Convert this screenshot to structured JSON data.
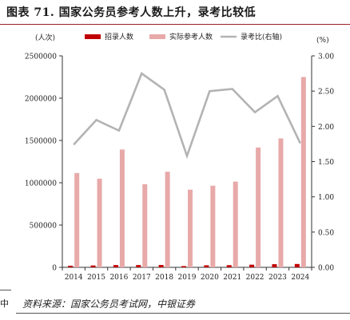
{
  "figure_title": "图表 71. 国家公务员参考人数上升，录考比较低",
  "source_note": "资料来源：国家公务员考试网，中银证券",
  "left_margin_text": "中",
  "colors": {
    "recruit": "#c00000",
    "applicants": "#e8a9a9",
    "ratio_line": "#b3b3b3",
    "title_rule": "#9c1f24"
  },
  "chart_data": {
    "type": "bar",
    "categories": [
      "2014",
      "2015",
      "2016",
      "2017",
      "2018",
      "2019",
      "2020",
      "2021",
      "2022",
      "2023",
      "2024"
    ],
    "series": [
      {
        "name": "招录人数",
        "kind": "bar",
        "axis": "left",
        "values": [
          19000,
          22000,
          27000,
          27000,
          28000,
          14500,
          24000,
          25700,
          31200,
          37100,
          39600
        ]
      },
      {
        "name": "实际参考人数",
        "kind": "bar",
        "axis": "left",
        "values": [
          1115000,
          1048000,
          1393000,
          983000,
          1130000,
          918000,
          965000,
          1013000,
          1417000,
          1524000,
          2250000
        ]
      },
      {
        "name": "录考比(右轴)",
        "kind": "line",
        "axis": "right",
        "values": [
          1.74,
          2.09,
          1.94,
          2.75,
          2.52,
          1.58,
          2.5,
          2.53,
          2.2,
          2.43,
          1.76
        ]
      }
    ],
    "y_left": {
      "label": "(人次)",
      "lim": [
        0,
        2500000
      ],
      "ticks": [
        "0",
        "500000",
        "1000000",
        "1500000",
        "2000000",
        "2500000"
      ]
    },
    "y_right": {
      "label": "(%)",
      "lim": [
        0,
        3
      ],
      "ticks": [
        "0.00",
        "0.50",
        "1.00",
        "1.50",
        "2.00",
        "2.50",
        "3.00"
      ]
    },
    "legend": "top",
    "grid": false
  }
}
